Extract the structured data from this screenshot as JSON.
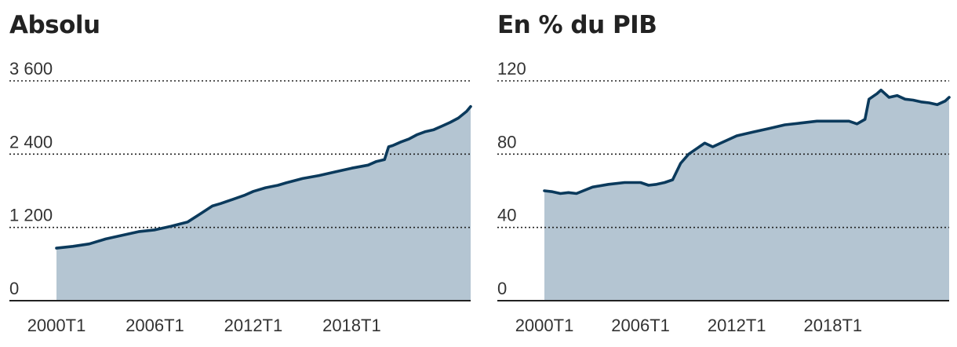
{
  "colors": {
    "line": "#0b3a5c",
    "area": "#b4c5d2",
    "grid": "#222222",
    "axis": "#222222"
  },
  "chart_data": [
    {
      "type": "area",
      "title": "Absolu",
      "ylim": [
        0,
        3600
      ],
      "yticks": [
        0,
        1200,
        2400,
        3600
      ],
      "ytick_labels": [
        "0",
        "1 200",
        "2 400",
        "3 600"
      ],
      "xlim": [
        2000,
        2025.25
      ],
      "xtick_labels": [
        {
          "x": 2000,
          "label": "2000T1"
        },
        {
          "x": 2006,
          "label": "2006T1"
        },
        {
          "x": 2012,
          "label": "2012T1"
        },
        {
          "x": 2018,
          "label": "2018T1"
        }
      ],
      "grid": "horizontal-dotted",
      "x": [
        2000,
        2001,
        2002,
        2003,
        2004,
        2005,
        2006,
        2007,
        2008,
        2008.75,
        2009.5,
        2010,
        2010.75,
        2011.5,
        2012,
        2012.75,
        2013.5,
        2014,
        2015,
        2016,
        2017,
        2018,
        2019,
        2019.5,
        2020,
        2020.25,
        2020.5,
        2021,
        2021.5,
        2022,
        2022.5,
        2023,
        2023.5,
        2024,
        2024.5,
        2025,
        2025.25
      ],
      "values": [
        860,
        890,
        930,
        1010,
        1070,
        1130,
        1160,
        1220,
        1290,
        1420,
        1550,
        1590,
        1660,
        1730,
        1790,
        1850,
        1890,
        1930,
        2000,
        2050,
        2110,
        2170,
        2220,
        2280,
        2310,
        2520,
        2540,
        2600,
        2650,
        2720,
        2770,
        2800,
        2860,
        2920,
        2990,
        3100,
        3180
      ]
    },
    {
      "type": "area",
      "title": "En % du PIB",
      "ylim": [
        0,
        120
      ],
      "yticks": [
        0,
        40,
        80,
        120
      ],
      "ytick_labels": [
        "0",
        "40",
        "80",
        "120"
      ],
      "xlim": [
        2000,
        2025.25
      ],
      "xtick_labels": [
        {
          "x": 2000,
          "label": "2000T1"
        },
        {
          "x": 2006,
          "label": "2006T1"
        },
        {
          "x": 2012,
          "label": "2012T1"
        },
        {
          "x": 2018,
          "label": "2018T1"
        }
      ],
      "grid": "horizontal-dotted",
      "x": [
        2000,
        2000.5,
        2001,
        2001.5,
        2002,
        2003,
        2004,
        2005,
        2006,
        2006.5,
        2007,
        2007.5,
        2008,
        2008.5,
        2009,
        2009.5,
        2010,
        2010.5,
        2011,
        2012,
        2013,
        2014,
        2015,
        2016,
        2017,
        2018,
        2019,
        2019.5,
        2020,
        2020.25,
        2020.75,
        2021,
        2021.5,
        2022,
        2022.5,
        2023,
        2023.5,
        2024,
        2024.5,
        2025,
        2025.25
      ],
      "values": [
        60,
        59.5,
        58.5,
        59,
        58.5,
        62,
        63.5,
        64.5,
        64.5,
        63,
        63.5,
        64.5,
        66,
        75,
        80,
        83,
        86,
        84,
        86,
        90,
        92,
        94,
        96,
        97,
        98,
        98,
        98,
        96.5,
        99,
        110,
        113,
        115,
        111,
        112,
        110,
        109.5,
        108.5,
        108,
        107,
        109,
        111
      ]
    }
  ]
}
